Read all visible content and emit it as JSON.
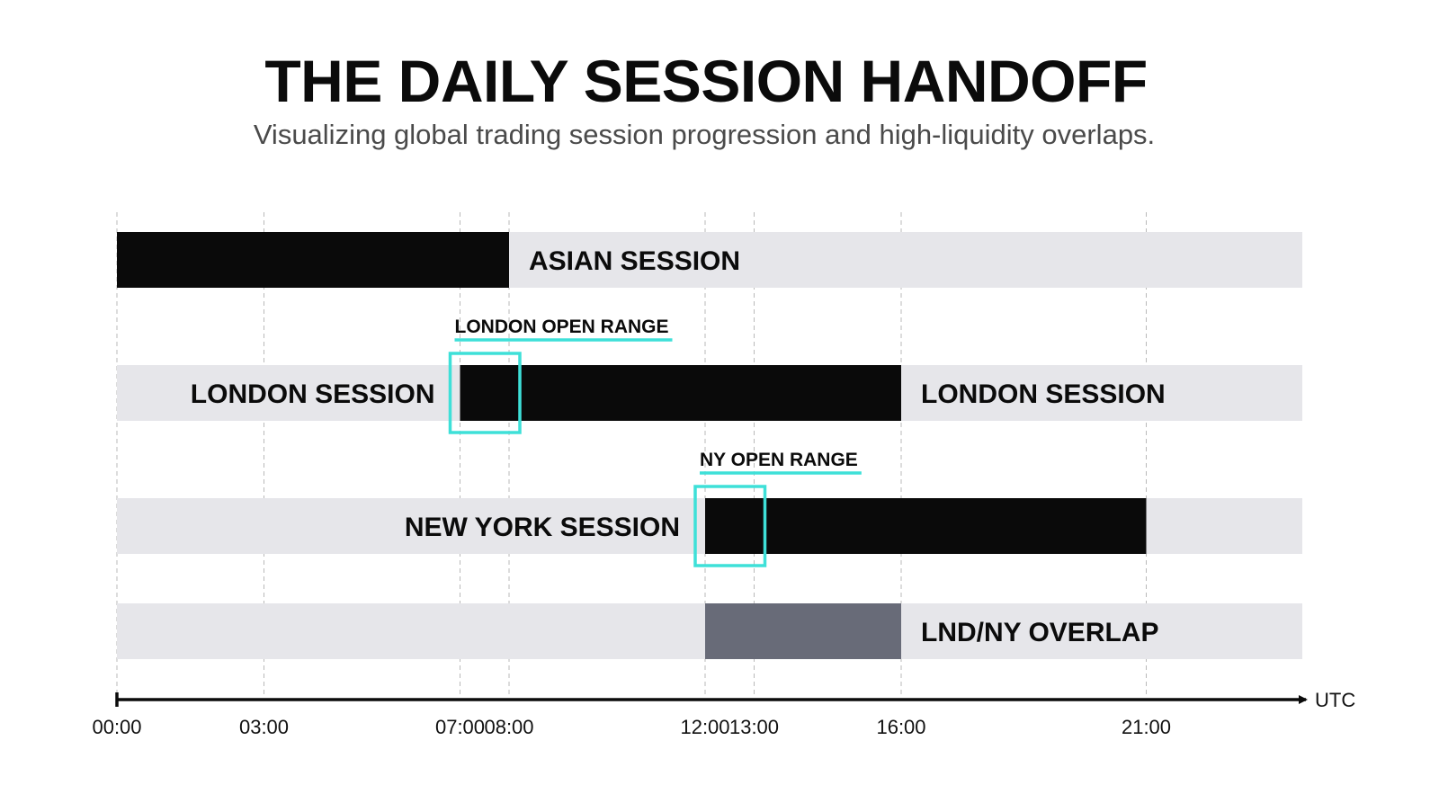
{
  "title": "THE DAILY SESSION HANDOFF",
  "subtitle": "Visualizing global trading session progression and high-liquidity overlaps.",
  "chart_data": {
    "type": "bar",
    "subtype": "timeline",
    "x_unit": "UTC",
    "x_range": [
      "00:00",
      "23:00"
    ],
    "ticks": [
      "00:00",
      "03:00",
      "07:00",
      "08:00",
      "12:00",
      "13:00",
      "16:00",
      "21:00"
    ],
    "grid": true,
    "rows": [
      {
        "label": "ASIAN SESSION",
        "start": "00:00",
        "end": "08:00",
        "color": "#0a0a0a"
      },
      {
        "label": "LONDON SESSION",
        "start": "07:00",
        "end": "16:00",
        "color": "#0a0a0a"
      },
      {
        "label": "NEW YORK SESSION",
        "start": "12:00",
        "end": "21:00",
        "color": "#0a0a0a"
      },
      {
        "label": "LND/NY OVERLAP",
        "start": "12:00",
        "end": "16:00",
        "color": "#686b78"
      }
    ],
    "highlights": [
      {
        "label": "LONDON OPEN RANGE",
        "row": 1,
        "start": "07:00",
        "end": "08:00"
      },
      {
        "label": "NY OPEN RANGE",
        "row": 2,
        "start": "12:00",
        "end": "13:00"
      }
    ],
    "colors": {
      "track": "#e6e6ea",
      "highlight": "#3ee0d8",
      "axis": "#0b0b0b",
      "grid": "#b9b9b9"
    }
  }
}
